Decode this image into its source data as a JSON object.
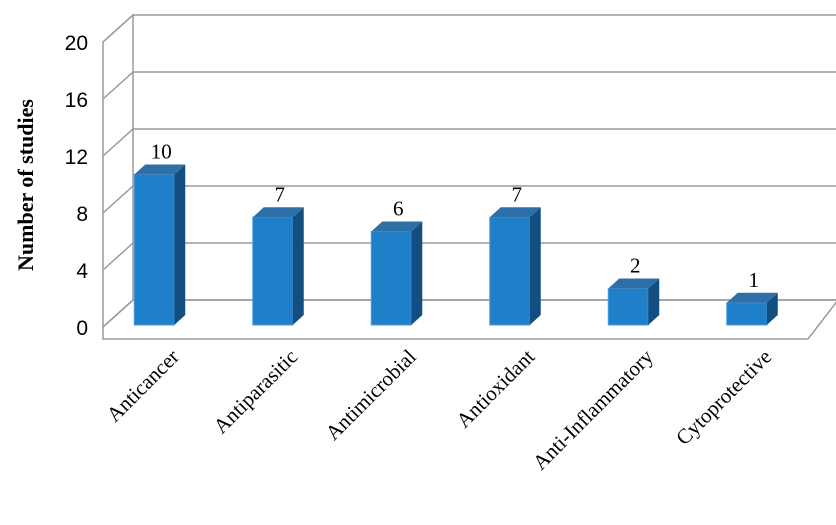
{
  "chart_data": {
    "type": "bar",
    "title": "",
    "xlabel": "",
    "ylabel": "Number of studies",
    "ylim": [
      0,
      20
    ],
    "yticks": [
      0,
      4,
      8,
      12,
      16,
      20
    ],
    "grid": true,
    "legend": "none",
    "categories": [
      "Anticancer",
      "Antiparasitic",
      "Antimicrobial",
      "Antioxidant",
      "Anti-Inflammatory",
      "Cytoprotective"
    ],
    "values": [
      10,
      7,
      6,
      7,
      2,
      1
    ],
    "data_labels": [
      "10",
      "7",
      "6",
      "7",
      "2",
      "1"
    ],
    "colors": {
      "bar_front": "#1f7fc9",
      "bar_side": "#124f80",
      "bar_top": "#2f6fa7",
      "grid": "#9a9a9a"
    }
  }
}
